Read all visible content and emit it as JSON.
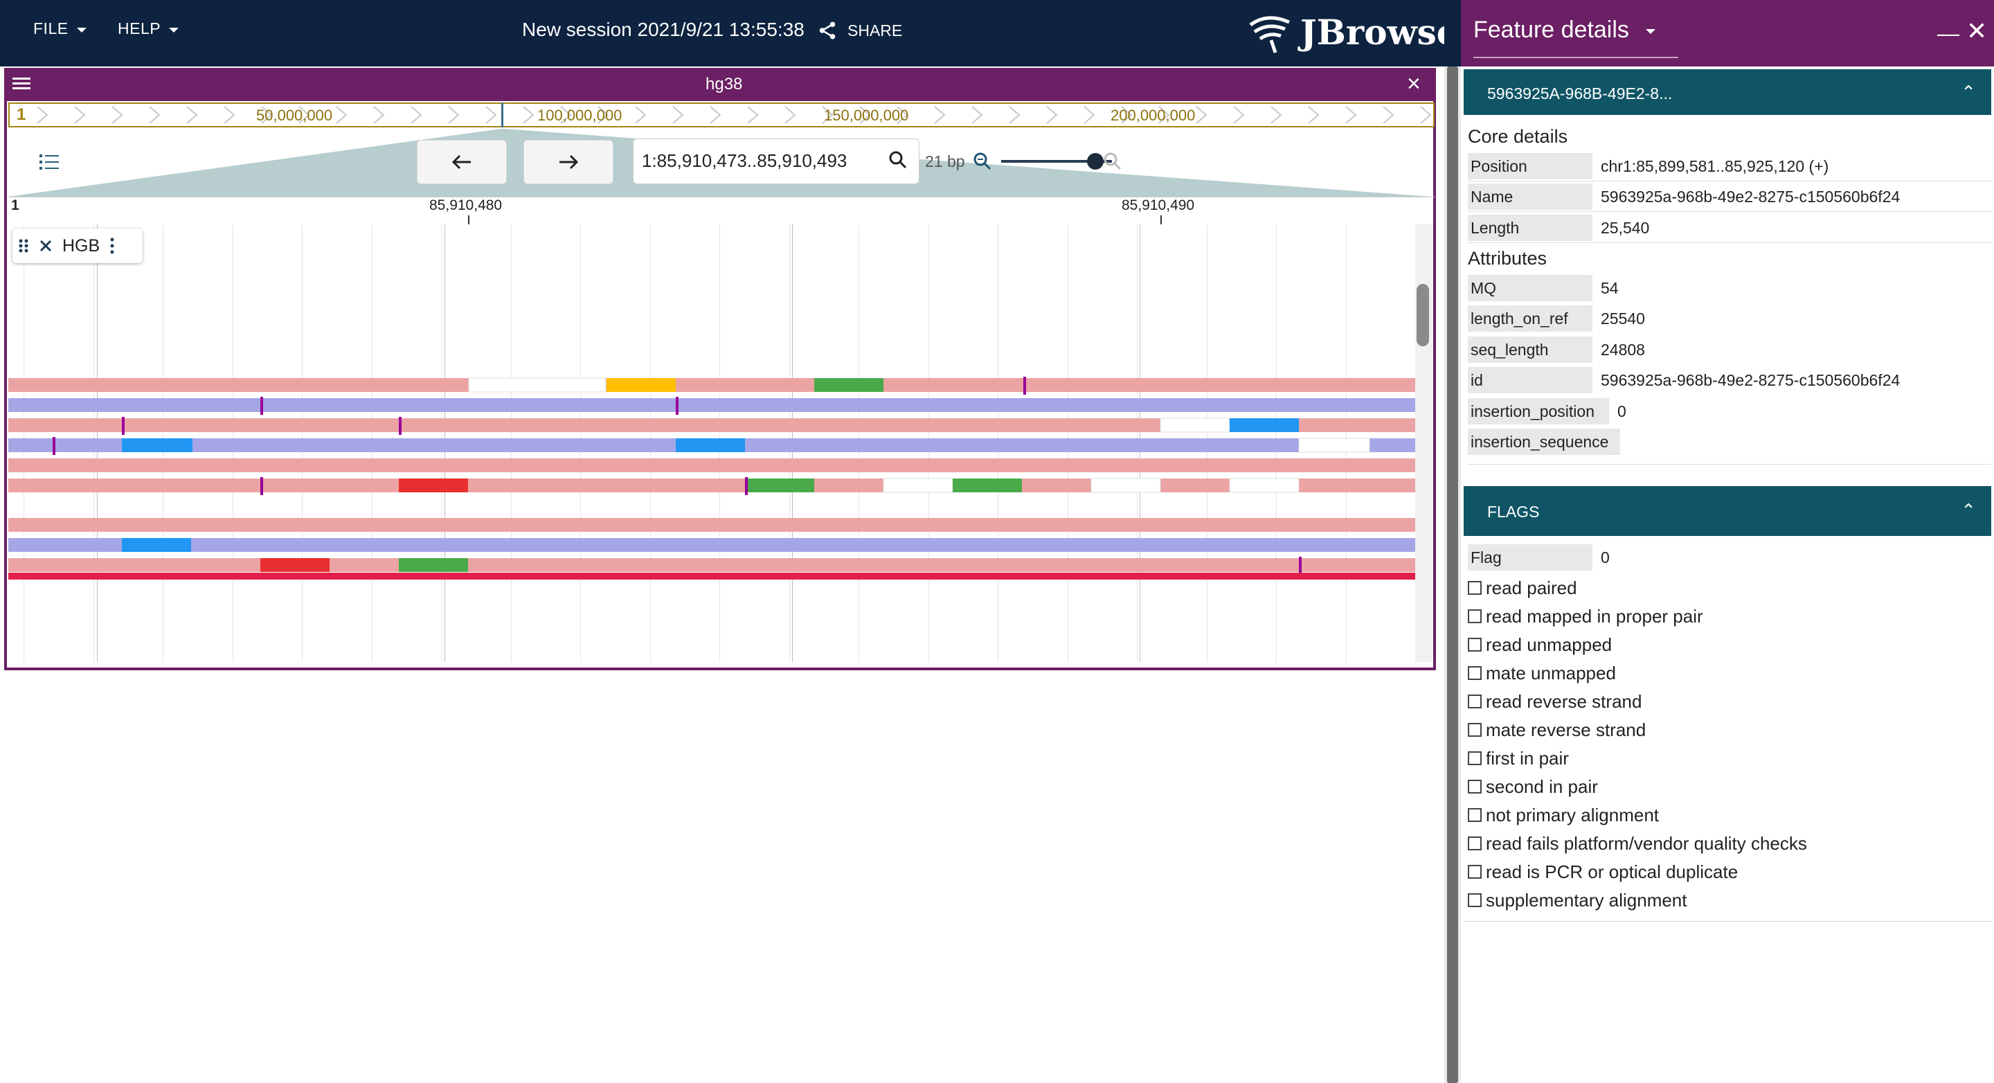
{
  "appbar": {
    "file_label": "FILE",
    "help_label": "HELP",
    "session_title": "New session 2021/9/21 13:55:38",
    "share_label": "SHARE",
    "logo_text": "JBrowse",
    "bg_color": "#0d233f"
  },
  "view": {
    "assembly_name": "hg38",
    "accent_color": "#6b1f64",
    "overview": {
      "chr_label": "1",
      "labels": [
        "50,000,000",
        "100,000,000",
        "150,000,000",
        "200,000,000"
      ]
    },
    "location": "1:85,910,473..85,910,493",
    "bp_width": "21 bp",
    "zoom_fraction": 0.85,
    "ruler": {
      "chr_label": "1",
      "labels": [
        "85,910,480",
        "85,910,490"
      ]
    },
    "track": {
      "name": "HGB"
    },
    "alignment_colors": {
      "forward": "#eca3a3",
      "reverse": "#a6a6e6",
      "mismatch_A": "#4aaa4a",
      "mismatch_C": "#2196f3",
      "mismatch_G": "#ffbf00",
      "mismatch_T": "#e83030",
      "insertion": "#990099",
      "selected": "#e3204b"
    }
  },
  "feature_panel": {
    "title": "Feature details",
    "accordion_title": "5963925A-968B-49E2-8...",
    "core_details_title": "Core details",
    "core_details": [
      {
        "key": "Position",
        "value": "chr1:85,899,581..85,925,120 (+)"
      },
      {
        "key": "Name",
        "value": "5963925a-968b-49e2-8275-c150560b6f24"
      },
      {
        "key": "Length",
        "value": "25,540"
      }
    ],
    "attributes_title": "Attributes",
    "attributes": [
      {
        "key": "MQ",
        "value": "54"
      },
      {
        "key": "length_on_ref",
        "value": "25540"
      },
      {
        "key": "seq_length",
        "value": "24808"
      },
      {
        "key": "id",
        "value": "5963925a-968b-49e2-8275-c150560b6f24"
      },
      {
        "key": "insertion_position",
        "value": "0"
      },
      {
        "key": "insertion_sequence",
        "value": ""
      }
    ],
    "flags_title": "FLAGS",
    "flag_key": "Flag",
    "flag_value": "0",
    "flags": [
      "read paired",
      "read mapped in proper pair",
      "read unmapped",
      "mate unmapped",
      "read reverse strand",
      "mate reverse strand",
      "first in pair",
      "second in pair",
      "not primary alignment",
      "read fails platform/vendor quality checks",
      "read is PCR or optical duplicate",
      "supplementary alignment"
    ]
  }
}
